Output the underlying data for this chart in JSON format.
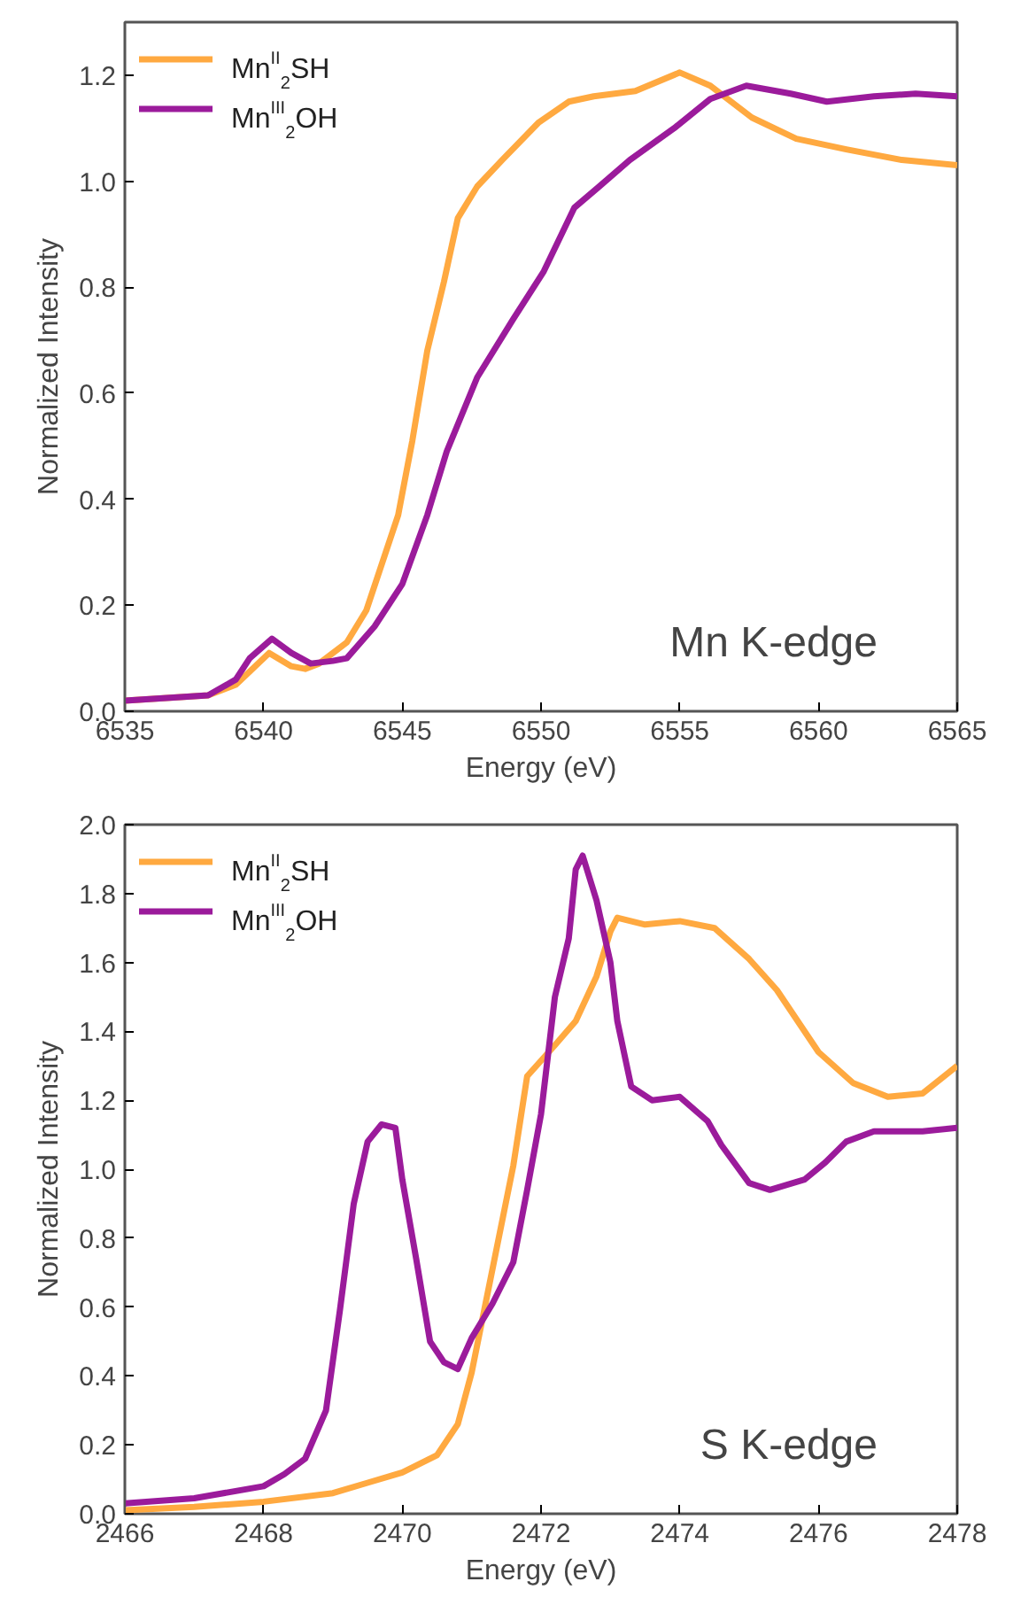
{
  "chart_data": [
    {
      "type": "line",
      "xlabel": "Energy (eV)",
      "ylabel": "Normalized Intensity",
      "annotations": [
        "Mn K-edge"
      ],
      "legend": "top left",
      "xlim": [
        6535,
        6565
      ],
      "ylim": [
        0,
        1.3
      ],
      "xticks": [
        6535,
        6540,
        6545,
        6550,
        6555,
        6560,
        6565
      ],
      "yticks": [
        {
          "value": 0,
          "label": "0.0"
        },
        {
          "value": 0.2,
          "label": "0.2"
        },
        {
          "value": 0.4,
          "label": "0.4"
        },
        {
          "value": 0.6,
          "label": "0.6"
        },
        {
          "value": 0.8,
          "label": "0.8"
        },
        {
          "value": 1.0,
          "label": "1.0"
        },
        {
          "value": 1.2,
          "label": "1.2"
        }
      ],
      "series": [
        {
          "name": "Mn$^{II}$$_{2}$SH",
          "color": "#ffa940",
          "x": [
            6535,
            6538,
            6539,
            6540.2,
            6541,
            6541.5,
            6542,
            6543,
            6543.7,
            6544.85,
            6545.36,
            6545.9,
            6546.5,
            6547.0,
            6547.7,
            6548.6,
            6549.9,
            6551.0,
            6551.9,
            6553.4,
            6555.0,
            6556.1,
            6557.6,
            6559.2,
            6561.0,
            6563.0,
            6565
          ],
          "values": [
            0.02,
            0.03,
            0.05,
            0.11,
            0.085,
            0.08,
            0.09,
            0.13,
            0.19,
            0.37,
            0.51,
            0.68,
            0.81,
            0.93,
            0.99,
            1.04,
            1.11,
            1.15,
            1.16,
            1.17,
            1.205,
            1.18,
            1.12,
            1.08,
            1.06,
            1.04,
            1.03
          ]
        },
        {
          "name": "Mn$^{III}$$_{2}$OH",
          "color": "#9b1b9b",
          "x": [
            6535,
            6538,
            6539,
            6539.5,
            6540.3,
            6541,
            6541.7,
            6542.5,
            6543,
            6544,
            6545.0,
            6545.9,
            6546.6,
            6547.7,
            6549.0,
            6550.1,
            6551.2,
            6552.1,
            6553.2,
            6554.8,
            6556.1,
            6557.4,
            6559.0,
            6560.3,
            6562,
            6563.5,
            6565
          ],
          "values": [
            0.02,
            0.03,
            0.06,
            0.1,
            0.137,
            0.11,
            0.09,
            0.095,
            0.1,
            0.16,
            0.24,
            0.37,
            0.49,
            0.63,
            0.74,
            0.83,
            0.95,
            0.99,
            1.04,
            1.1,
            1.155,
            1.18,
            1.165,
            1.15,
            1.16,
            1.165,
            1.16
          ]
        }
      ]
    },
    {
      "type": "line",
      "xlabel": "Energy (eV)",
      "ylabel": "Normalized Intensity",
      "annotations": [
        "S K-edge"
      ],
      "legend": "top left",
      "xlim": [
        2466,
        2478
      ],
      "ylim": [
        0,
        2.0
      ],
      "xticks": [
        2466,
        2468,
        2470,
        2472,
        2474,
        2476,
        2478
      ],
      "yticks": [
        {
          "value": 0,
          "label": "0.0"
        },
        {
          "value": 0.2,
          "label": "0.2"
        },
        {
          "value": 0.4,
          "label": "0.4"
        },
        {
          "value": 0.6,
          "label": "0.6"
        },
        {
          "value": 0.8,
          "label": "0.8"
        },
        {
          "value": 1.0,
          "label": "1.0"
        },
        {
          "value": 1.2,
          "label": "1.2"
        },
        {
          "value": 1.4,
          "label": "1.4"
        },
        {
          "value": 1.6,
          "label": "1.6"
        },
        {
          "value": 1.8,
          "label": "1.8"
        },
        {
          "value": 2.0,
          "label": "2.0"
        }
      ],
      "series": [
        {
          "name": "Mn$^{II}$$_{2}$SH",
          "color": "#ffa940",
          "x": [
            2466,
            2467,
            2468,
            2469,
            2469.5,
            2470,
            2470.5,
            2470.8,
            2471.0,
            2471.2,
            2471.4,
            2471.6,
            2471.8,
            2472.2,
            2472.5,
            2472.8,
            2473.0,
            2473.1,
            2473.5,
            2474.0,
            2474.5,
            2475,
            2475.4,
            2476,
            2476.5,
            2477,
            2477.5,
            2478
          ],
          "values": [
            0.01,
            0.02,
            0.035,
            0.06,
            0.09,
            0.12,
            0.17,
            0.26,
            0.41,
            0.61,
            0.81,
            1.01,
            1.27,
            1.36,
            1.43,
            1.56,
            1.69,
            1.73,
            1.71,
            1.72,
            1.7,
            1.61,
            1.52,
            1.34,
            1.25,
            1.21,
            1.22,
            1.3
          ]
        },
        {
          "name": "Mn$^{III}$$_{2}$OH",
          "color": "#9b1b9b",
          "x": [
            2466,
            2467,
            2468,
            2468.3,
            2468.6,
            2468.9,
            2469.1,
            2469.3,
            2469.5,
            2469.7,
            2469.9,
            2470.0,
            2470.2,
            2470.4,
            2470.6,
            2470.8,
            2471.0,
            2471.3,
            2471.6,
            2471.8,
            2472.0,
            2472.2,
            2472.4,
            2472.5,
            2472.6,
            2472.8,
            2473.0,
            2473.1,
            2473.3,
            2473.6,
            2474.0,
            2474.4,
            2474.6,
            2475.0,
            2475.3,
            2475.8,
            2476.1,
            2476.4,
            2476.8,
            2477.5,
            2478
          ],
          "values": [
            0.03,
            0.045,
            0.08,
            0.115,
            0.16,
            0.3,
            0.59,
            0.9,
            1.08,
            1.13,
            1.12,
            0.97,
            0.74,
            0.5,
            0.44,
            0.42,
            0.51,
            0.61,
            0.73,
            0.94,
            1.16,
            1.5,
            1.67,
            1.87,
            1.91,
            1.78,
            1.6,
            1.43,
            1.24,
            1.2,
            1.21,
            1.14,
            1.07,
            0.96,
            0.94,
            0.97,
            1.02,
            1.08,
            1.11,
            1.11,
            1.12
          ]
        }
      ]
    }
  ]
}
